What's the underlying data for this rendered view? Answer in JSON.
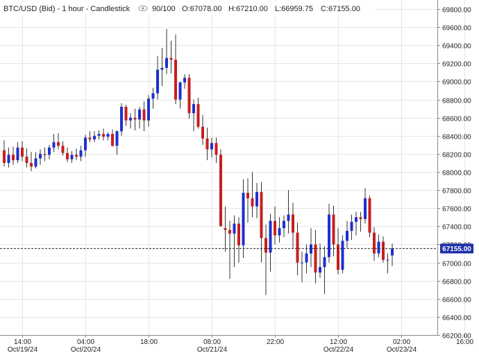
{
  "header": {
    "symbol": "BTC/USD (Bid) - 1 hour - Candlestick",
    "icon": "eye-icon",
    "bars": "90/100",
    "open": "O:67078.00",
    "high": "H:67210.00",
    "low": "L:66959.75",
    "close": "C:67155.00"
  },
  "colors": {
    "up": "#1f2fd0",
    "down": "#c81e1e",
    "wick": "#333333",
    "grid": "#e6e6e6",
    "price_tag_bg": "#1f2fa8"
  },
  "chart_data": {
    "type": "candlestick",
    "ylim": [
      66200,
      69900
    ],
    "y_ticks": [
      "66200.00",
      "66400.00",
      "66600.00",
      "66800.00",
      "67000.00",
      "67200.00",
      "67400.00",
      "67600.00",
      "67800.00",
      "68000.00",
      "68200.00",
      "68400.00",
      "68600.00",
      "68800.00",
      "69000.00",
      "69200.00",
      "69400.00",
      "69600.00",
      "69800.00"
    ],
    "x_ticks": [
      {
        "time": "14:00",
        "date": "Oct/19/24",
        "index": 4
      },
      {
        "time": "04:00",
        "date": "Oct/20/24",
        "index": 18
      },
      {
        "time": "18:00",
        "date": "",
        "index": 32
      },
      {
        "time": "08:00",
        "date": "Oct/21/24",
        "index": 46
      },
      {
        "time": "22:00",
        "date": "",
        "index": 60
      },
      {
        "time": "12:00",
        "date": "Oct/22/24",
        "index": 74
      },
      {
        "time": "02:00",
        "date": "Oct/23/24",
        "index": 88
      },
      {
        "time": "16:00",
        "date": "",
        "index": 102
      }
    ],
    "last_price": "67155.00",
    "candles": [
      {
        "o": 68240,
        "h": 68350,
        "l": 68060,
        "c": 68100
      },
      {
        "o": 68100,
        "h": 68270,
        "l": 68050,
        "c": 68190
      },
      {
        "o": 68190,
        "h": 68280,
        "l": 68080,
        "c": 68130
      },
      {
        "o": 68130,
        "h": 68330,
        "l": 68100,
        "c": 68270
      },
      {
        "o": 68270,
        "h": 68340,
        "l": 68120,
        "c": 68170
      },
      {
        "o": 68170,
        "h": 68260,
        "l": 68050,
        "c": 68100
      },
      {
        "o": 68100,
        "h": 68220,
        "l": 68010,
        "c": 68060
      },
      {
        "o": 68060,
        "h": 68220,
        "l": 68040,
        "c": 68150
      },
      {
        "o": 68150,
        "h": 68250,
        "l": 68080,
        "c": 68200
      },
      {
        "o": 68200,
        "h": 68270,
        "l": 68120,
        "c": 68190
      },
      {
        "o": 68190,
        "h": 68300,
        "l": 68140,
        "c": 68270
      },
      {
        "o": 68270,
        "h": 68420,
        "l": 68220,
        "c": 68330
      },
      {
        "o": 68330,
        "h": 68430,
        "l": 68250,
        "c": 68290
      },
      {
        "o": 68290,
        "h": 68340,
        "l": 68180,
        "c": 68210
      },
      {
        "o": 68210,
        "h": 68270,
        "l": 68110,
        "c": 68140
      },
      {
        "o": 68140,
        "h": 68230,
        "l": 68100,
        "c": 68190
      },
      {
        "o": 68190,
        "h": 68260,
        "l": 68130,
        "c": 68170
      },
      {
        "o": 68170,
        "h": 68290,
        "l": 68120,
        "c": 68240
      },
      {
        "o": 68240,
        "h": 68410,
        "l": 68170,
        "c": 68380
      },
      {
        "o": 68380,
        "h": 68450,
        "l": 68330,
        "c": 68360
      },
      {
        "o": 68360,
        "h": 68450,
        "l": 68330,
        "c": 68400
      },
      {
        "o": 68400,
        "h": 68460,
        "l": 68360,
        "c": 68420
      },
      {
        "o": 68420,
        "h": 68480,
        "l": 68350,
        "c": 68390
      },
      {
        "o": 68390,
        "h": 68440,
        "l": 68350,
        "c": 68420
      },
      {
        "o": 68420,
        "h": 68470,
        "l": 68280,
        "c": 68290
      },
      {
        "o": 68290,
        "h": 68460,
        "l": 68190,
        "c": 68450
      },
      {
        "o": 68450,
        "h": 68760,
        "l": 68400,
        "c": 68720
      },
      {
        "o": 68720,
        "h": 68740,
        "l": 68510,
        "c": 68570
      },
      {
        "o": 68570,
        "h": 68650,
        "l": 68480,
        "c": 68600
      },
      {
        "o": 68600,
        "h": 68700,
        "l": 68460,
        "c": 68580
      },
      {
        "o": 68580,
        "h": 68720,
        "l": 68480,
        "c": 68690
      },
      {
        "o": 68690,
        "h": 68780,
        "l": 68450,
        "c": 68570
      },
      {
        "o": 68570,
        "h": 68850,
        "l": 68500,
        "c": 68810
      },
      {
        "o": 68810,
        "h": 68930,
        "l": 68700,
        "c": 68870
      },
      {
        "o": 68870,
        "h": 69280,
        "l": 68800,
        "c": 69130
      },
      {
        "o": 69130,
        "h": 69370,
        "l": 68950,
        "c": 69150
      },
      {
        "o": 69150,
        "h": 69580,
        "l": 69080,
        "c": 69260
      },
      {
        "o": 69260,
        "h": 69450,
        "l": 69090,
        "c": 69240
      },
      {
        "o": 69240,
        "h": 69520,
        "l": 68750,
        "c": 68800
      },
      {
        "o": 68800,
        "h": 69000,
        "l": 68700,
        "c": 68990
      },
      {
        "o": 68990,
        "h": 69080,
        "l": 68920,
        "c": 69040
      },
      {
        "o": 69040,
        "h": 69080,
        "l": 68590,
        "c": 68650
      },
      {
        "o": 68650,
        "h": 68800,
        "l": 68450,
        "c": 68750
      },
      {
        "o": 68750,
        "h": 68820,
        "l": 68480,
        "c": 68500
      },
      {
        "o": 68500,
        "h": 68630,
        "l": 68300,
        "c": 68370
      },
      {
        "o": 68370,
        "h": 68490,
        "l": 68130,
        "c": 68250
      },
      {
        "o": 68250,
        "h": 68380,
        "l": 68160,
        "c": 68320
      },
      {
        "o": 68320,
        "h": 68380,
        "l": 68100,
        "c": 68190
      },
      {
        "o": 68190,
        "h": 68250,
        "l": 67400,
        "c": 67400
      },
      {
        "o": 67380,
        "h": 67620,
        "l": 67120,
        "c": 67360
      },
      {
        "o": 67360,
        "h": 67460,
        "l": 66820,
        "c": 67320
      },
      {
        "o": 67320,
        "h": 67520,
        "l": 66950,
        "c": 67430
      },
      {
        "o": 67430,
        "h": 67500,
        "l": 67000,
        "c": 67190
      },
      {
        "o": 67190,
        "h": 67920,
        "l": 67050,
        "c": 67770
      },
      {
        "o": 67770,
        "h": 67930,
        "l": 67440,
        "c": 67710
      },
      {
        "o": 67710,
        "h": 68000,
        "l": 67500,
        "c": 67620
      },
      {
        "o": 67620,
        "h": 67880,
        "l": 67490,
        "c": 67780
      },
      {
        "o": 67780,
        "h": 67890,
        "l": 67000,
        "c": 67270
      },
      {
        "o": 67270,
        "h": 67420,
        "l": 66640,
        "c": 67110
      },
      {
        "o": 67110,
        "h": 67540,
        "l": 66900,
        "c": 67460
      },
      {
        "o": 67460,
        "h": 67620,
        "l": 67200,
        "c": 67300
      },
      {
        "o": 67300,
        "h": 67500,
        "l": 67220,
        "c": 67380
      },
      {
        "o": 67380,
        "h": 67520,
        "l": 67280,
        "c": 67460
      },
      {
        "o": 67460,
        "h": 67800,
        "l": 67320,
        "c": 67530
      },
      {
        "o": 67530,
        "h": 67660,
        "l": 67160,
        "c": 67330
      },
      {
        "o": 67330,
        "h": 67440,
        "l": 66860,
        "c": 67000
      },
      {
        "o": 67000,
        "h": 67120,
        "l": 66780,
        "c": 67000
      },
      {
        "o": 67000,
        "h": 67200,
        "l": 66880,
        "c": 67100
      },
      {
        "o": 67100,
        "h": 67380,
        "l": 66950,
        "c": 67200
      },
      {
        "o": 67200,
        "h": 67360,
        "l": 66770,
        "c": 66890
      },
      {
        "o": 66890,
        "h": 67210,
        "l": 66830,
        "c": 66950
      },
      {
        "o": 66950,
        "h": 67180,
        "l": 66650,
        "c": 67060
      },
      {
        "o": 67060,
        "h": 67650,
        "l": 67000,
        "c": 67530
      },
      {
        "o": 67530,
        "h": 67630,
        "l": 67070,
        "c": 67200
      },
      {
        "o": 67200,
        "h": 67380,
        "l": 66870,
        "c": 66920
      },
      {
        "o": 66920,
        "h": 67300,
        "l": 66880,
        "c": 67240
      },
      {
        "o": 67240,
        "h": 67460,
        "l": 67160,
        "c": 67350
      },
      {
        "o": 67350,
        "h": 67530,
        "l": 67250,
        "c": 67450
      },
      {
        "o": 67450,
        "h": 67560,
        "l": 67300,
        "c": 67500
      },
      {
        "o": 67500,
        "h": 67560,
        "l": 67340,
        "c": 67480
      },
      {
        "o": 67480,
        "h": 67820,
        "l": 67430,
        "c": 67710
      },
      {
        "o": 67710,
        "h": 67740,
        "l": 67280,
        "c": 67330
      },
      {
        "o": 67330,
        "h": 67390,
        "l": 67020,
        "c": 67100
      },
      {
        "o": 67100,
        "h": 67310,
        "l": 67060,
        "c": 67230
      },
      {
        "o": 67230,
        "h": 67290,
        "l": 67000,
        "c": 67030
      },
      {
        "o": 67030,
        "h": 67100,
        "l": 66880,
        "c": 67030
      },
      {
        "o": 67078,
        "h": 67210,
        "l": 66960,
        "c": 67155
      }
    ]
  }
}
